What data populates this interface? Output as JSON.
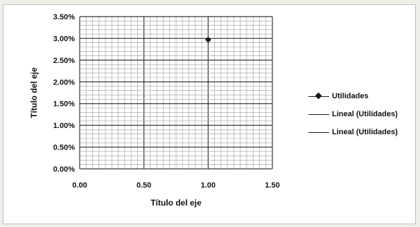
{
  "chart_data": {
    "type": "scatter",
    "xlabel": "Título del eje",
    "ylabel": "Título del eje",
    "xlim": [
      0,
      1.5
    ],
    "ylim": [
      0,
      0.035
    ],
    "x_ticks": [
      "0.00",
      "0.50",
      "1.00",
      "1.50"
    ],
    "y_ticks": [
      "0.00%",
      "0.50%",
      "1.00%",
      "1.50%",
      "2.00%",
      "2.50%",
      "3.00%",
      "3.50%"
    ],
    "grid": true,
    "legend_position": "right",
    "series": [
      {
        "name": "Utilidades",
        "marker": "diamond",
        "points": [
          {
            "x": 1.0,
            "y": 0.0297
          }
        ]
      },
      {
        "name": "Lineal (Utilidades)",
        "kind": "trendline"
      },
      {
        "name": "Lineal (Utilidades)",
        "kind": "trendline"
      }
    ],
    "colors": {
      "series": "#1a1a1a",
      "grid": "#9a9a9a",
      "frame": "#bdbdbd"
    }
  }
}
